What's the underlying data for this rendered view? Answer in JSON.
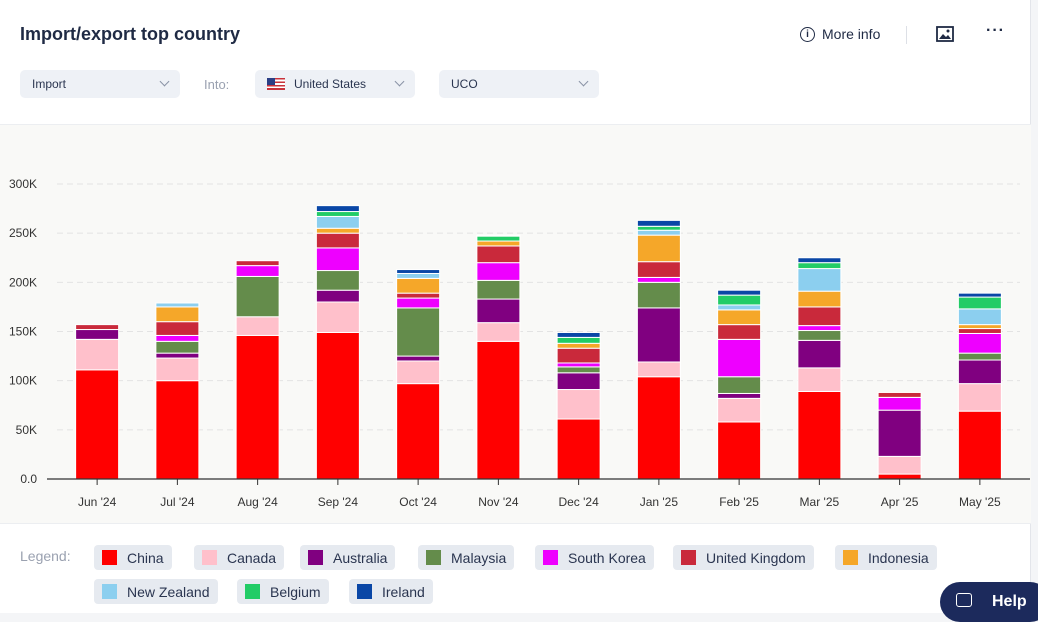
{
  "header": {
    "title": "Import/export top country",
    "more_info": "More info",
    "image_icon": "image-icon",
    "menu_icon": "more-horizontal-icon"
  },
  "filters": {
    "flow": "Import",
    "into_label": "Into:",
    "country": "United States",
    "product": "UCO"
  },
  "legend": {
    "label": "Legend:"
  },
  "help": {
    "label": "Help"
  },
  "chart_data": {
    "type": "bar",
    "stacked": true,
    "categories": [
      "Jun '24",
      "Jul '24",
      "Aug '24",
      "Sep '24",
      "Oct '24",
      "Nov '24",
      "Dec '24",
      "Jan '25",
      "Feb '25",
      "Mar '25",
      "Apr '25",
      "May '25"
    ],
    "ylim": [
      0,
      300000
    ],
    "yticks": [
      "0.0",
      "50K",
      "100K",
      "150K",
      "200K",
      "250K",
      "300K"
    ],
    "grid": true,
    "legend_position": "bottom",
    "series": [
      {
        "name": "China",
        "color": "#ff0000",
        "values": [
          111000,
          100000,
          146000,
          149000,
          97000,
          140000,
          61000,
          104000,
          58000,
          89000,
          5000,
          69000
        ]
      },
      {
        "name": "Canada",
        "color": "#ffc0cb",
        "values": [
          31000,
          23000,
          19000,
          31000,
          23000,
          19000,
          30000,
          15000,
          24000,
          24000,
          18000,
          28000
        ]
      },
      {
        "name": "Australia",
        "color": "#800080",
        "values": [
          10000,
          5000,
          0,
          12000,
          5000,
          24000,
          17000,
          55000,
          5000,
          28000,
          47000,
          24000
        ]
      },
      {
        "name": "Malaysia",
        "color": "#648c4b",
        "values": [
          0,
          12000,
          41000,
          20000,
          49000,
          19000,
          6000,
          26000,
          17000,
          10000,
          0,
          7000
        ]
      },
      {
        "name": "South Korea",
        "color": "#ee00ff",
        "values": [
          0,
          6000,
          11000,
          23000,
          10000,
          18000,
          4000,
          5000,
          38000,
          5000,
          13000,
          20000
        ]
      },
      {
        "name": "United Kingdom",
        "color": "#c9293b",
        "values": [
          5000,
          14000,
          5000,
          15000,
          5000,
          17000,
          15000,
          16000,
          15000,
          19000,
          5000,
          5000
        ]
      },
      {
        "name": "Indonesia",
        "color": "#f5a729",
        "values": [
          0,
          15000,
          0,
          5000,
          15000,
          5000,
          5000,
          27000,
          15000,
          16000,
          0,
          4000
        ]
      },
      {
        "name": "New Zealand",
        "color": "#8ccfef",
        "values": [
          0,
          4000,
          0,
          12000,
          5000,
          0,
          0,
          5000,
          5000,
          23000,
          0,
          16000
        ]
      },
      {
        "name": "Belgium",
        "color": "#22cc66",
        "values": [
          0,
          0,
          0,
          5000,
          0,
          5000,
          6000,
          4000,
          10000,
          6000,
          0,
          12000
        ]
      },
      {
        "name": "Ireland",
        "color": "#0a47a6",
        "values": [
          0,
          0,
          0,
          6000,
          4000,
          1000,
          5000,
          6000,
          5000,
          5000,
          0,
          4000
        ]
      }
    ]
  }
}
